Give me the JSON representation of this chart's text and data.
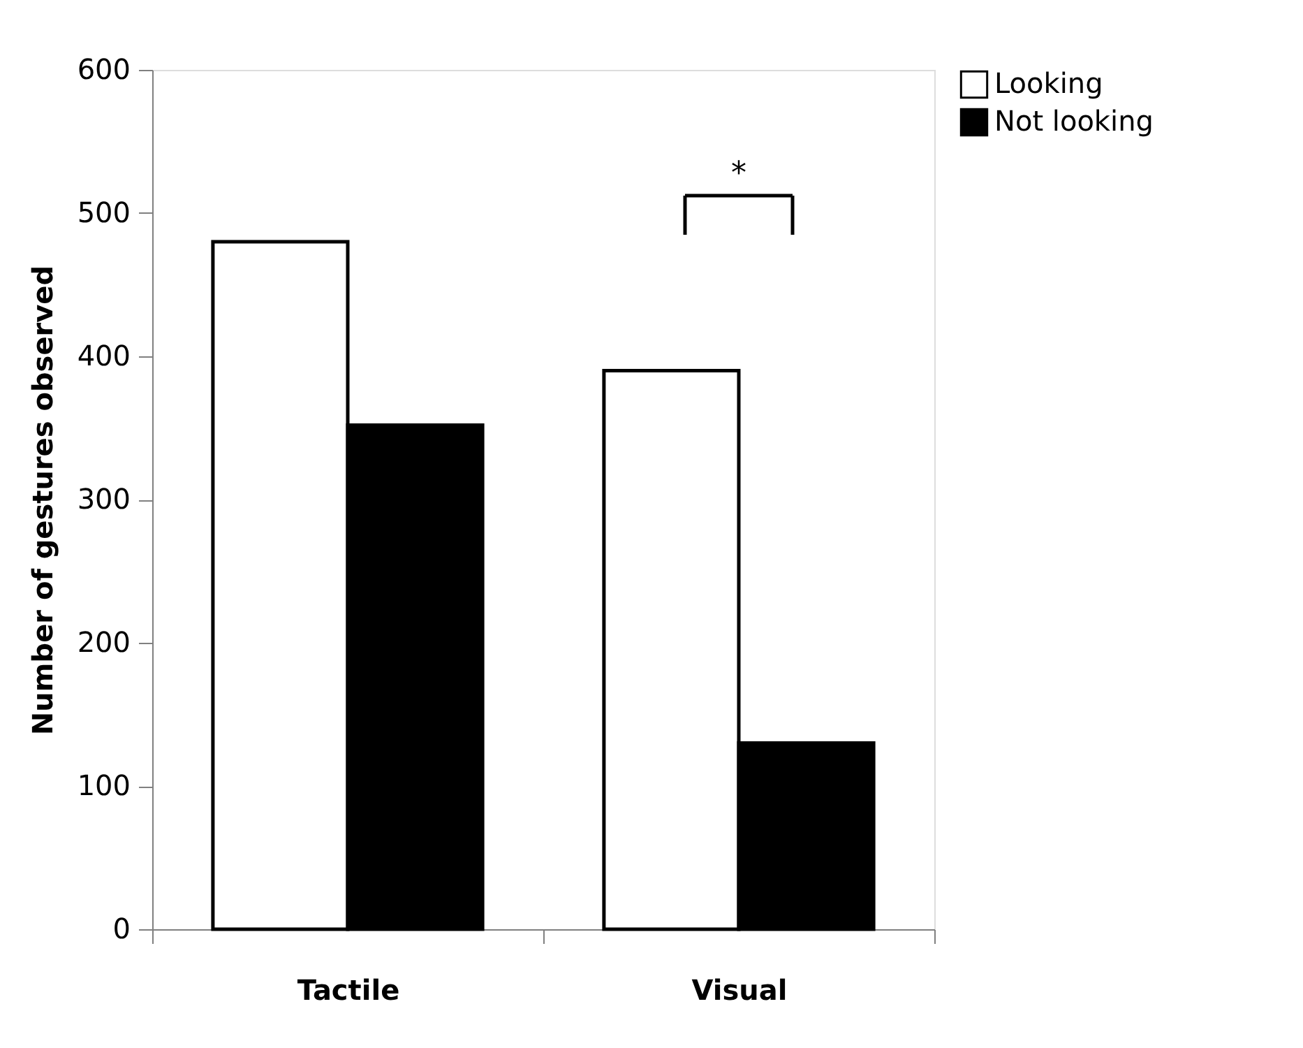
{
  "chart_data": {
    "type": "bar",
    "ylabel": "Number of gestures observed",
    "categories": [
      "Tactile",
      "Visual"
    ],
    "series": [
      {
        "name": "Looking",
        "color": "#ffffff",
        "values": [
          480,
          390
        ]
      },
      {
        "name": "Not looking",
        "color": "#000000",
        "values": [
          352,
          130
        ]
      }
    ],
    "ylim": [
      0,
      600
    ],
    "yticks": [
      0,
      100,
      200,
      300,
      400,
      500,
      600
    ],
    "grid": false,
    "legend": "right",
    "annotations": [
      "*"
    ]
  }
}
